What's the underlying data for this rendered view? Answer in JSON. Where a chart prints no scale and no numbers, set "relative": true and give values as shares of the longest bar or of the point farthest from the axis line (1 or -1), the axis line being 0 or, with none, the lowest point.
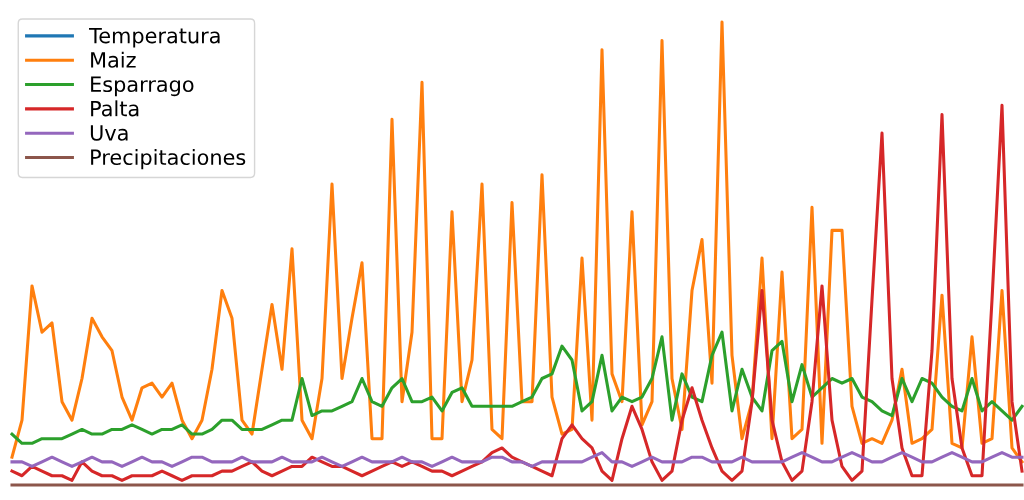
{
  "chart_data": {
    "type": "line",
    "relative": true,
    "legend": "top left",
    "grid": false,
    "categories": [
      null,
      null,
      null,
      null,
      null,
      null,
      null,
      null,
      null,
      null,
      null,
      null,
      null,
      null,
      null,
      null,
      null,
      null,
      null,
      null,
      null,
      null,
      null,
      null,
      null,
      null,
      null,
      null,
      null,
      null,
      null,
      null,
      null,
      null,
      null,
      null,
      null,
      null,
      null,
      null,
      null,
      null,
      null,
      null,
      null,
      null,
      null,
      null,
      null,
      null,
      null,
      null,
      null,
      null,
      null,
      null,
      null,
      null,
      null,
      null,
      null,
      null,
      null,
      null,
      null,
      null,
      null,
      null,
      null,
      null,
      null,
      null,
      null,
      null,
      null,
      null,
      null,
      null,
      null,
      null,
      null,
      null,
      null,
      null,
      null,
      null,
      null,
      null,
      null,
      null,
      null,
      null,
      null,
      null,
      null,
      null,
      null,
      null,
      null,
      null,
      null,
      null
    ],
    "series": [
      {
        "name": "Temperatura",
        "color": "#1f77b4",
        "values": [
          null,
          null,
          null,
          null,
          null,
          null,
          null,
          null,
          null,
          null,
          null,
          null,
          null,
          null,
          null,
          null,
          null,
          null,
          null,
          null,
          null,
          null,
          null,
          null,
          null,
          null,
          null,
          null,
          null,
          null,
          null,
          null,
          null,
          null,
          null,
          null,
          null,
          null,
          null,
          null,
          null,
          null,
          null,
          null,
          null,
          null,
          null,
          null,
          null,
          null,
          null,
          null,
          null,
          null,
          null,
          null,
          null,
          null,
          null,
          null,
          null,
          null,
          null,
          null,
          null,
          null,
          null,
          null,
          null,
          null,
          null,
          null,
          null,
          null,
          null,
          null,
          null,
          null,
          null,
          null,
          null,
          null,
          null,
          null,
          null,
          null,
          null,
          null,
          null,
          null,
          null,
          null,
          null,
          null,
          null,
          null,
          null,
          null,
          null,
          null,
          null,
          null
        ]
      },
      {
        "name": "Maiz",
        "color": "#ff7f0e",
        "values": [
          0.06,
          0.14,
          0.43,
          0.33,
          0.35,
          0.18,
          0.14,
          0.23,
          0.36,
          0.32,
          0.29,
          0.19,
          0.14,
          0.21,
          0.22,
          0.19,
          0.22,
          0.14,
          0.1,
          0.14,
          0.25,
          0.42,
          0.36,
          0.14,
          0.11,
          0.25,
          0.39,
          0.25,
          0.51,
          0.14,
          0.1,
          0.23,
          0.65,
          0.23,
          0.36,
          0.48,
          0.1,
          0.1,
          0.79,
          0.18,
          0.33,
          0.87,
          0.1,
          0.1,
          0.59,
          0.18,
          0.27,
          0.65,
          0.12,
          0.1,
          0.61,
          0.18,
          0.18,
          0.67,
          0.19,
          0.11,
          0.12,
          0.49,
          0.14,
          0.94,
          0.24,
          0.18,
          0.59,
          0.13,
          0.18,
          0.96,
          0.23,
          0.12,
          0.42,
          0.53,
          0.22,
          1.0,
          0.28,
          0.1,
          0.18,
          0.49,
          0.1,
          0.46,
          0.1,
          0.12,
          0.6,
          0.09,
          0.55,
          0.55,
          0.17,
          0.09,
          0.1,
          0.09,
          0.14,
          0.25,
          0.09,
          0.1,
          0.12,
          0.41,
          0.09,
          0.08,
          0.32,
          0.09,
          0.1,
          0.42,
          0.08,
          0.05
        ]
      },
      {
        "name": "Esparrago",
        "color": "#2ca02c",
        "values": [
          0.11,
          0.09,
          0.09,
          0.1,
          0.1,
          0.1,
          0.11,
          0.12,
          0.11,
          0.11,
          0.12,
          0.12,
          0.13,
          0.12,
          0.11,
          0.12,
          0.12,
          0.13,
          0.11,
          0.11,
          0.12,
          0.14,
          0.14,
          0.12,
          0.12,
          0.12,
          0.13,
          0.14,
          0.14,
          0.23,
          0.15,
          0.16,
          0.16,
          0.17,
          0.18,
          0.23,
          0.18,
          0.17,
          0.21,
          0.23,
          0.18,
          0.18,
          0.19,
          0.16,
          0.2,
          0.21,
          0.17,
          0.17,
          0.17,
          0.17,
          0.17,
          0.18,
          0.19,
          0.23,
          0.24,
          0.3,
          0.27,
          0.16,
          0.18,
          0.28,
          0.16,
          0.19,
          0.18,
          0.19,
          0.23,
          0.32,
          0.14,
          0.24,
          0.19,
          0.18,
          0.28,
          0.33,
          0.16,
          0.25,
          0.19,
          0.16,
          0.29,
          0.31,
          0.18,
          0.26,
          0.19,
          0.21,
          0.23,
          0.22,
          0.23,
          0.19,
          0.18,
          0.16,
          0.15,
          0.23,
          0.18,
          0.23,
          0.22,
          0.19,
          0.17,
          0.16,
          0.23,
          0.16,
          0.18,
          0.16,
          0.14,
          0.17
        ]
      },
      {
        "name": "Palta",
        "color": "#d62728",
        "values": [
          0.03,
          0.02,
          0.04,
          0.03,
          0.02,
          0.02,
          0.01,
          0.05,
          0.03,
          0.02,
          0.02,
          0.01,
          0.02,
          0.02,
          0.02,
          0.03,
          0.02,
          0.01,
          0.02,
          0.02,
          0.02,
          0.03,
          0.03,
          0.04,
          0.05,
          0.03,
          0.02,
          0.03,
          0.04,
          0.04,
          0.06,
          0.05,
          0.04,
          0.04,
          0.03,
          0.02,
          0.03,
          0.04,
          0.05,
          0.04,
          0.05,
          0.04,
          0.03,
          0.03,
          0.02,
          0.03,
          0.04,
          0.05,
          0.07,
          0.08,
          0.06,
          0.05,
          0.04,
          0.03,
          0.02,
          0.1,
          0.13,
          0.1,
          0.08,
          0.03,
          0.01,
          0.1,
          0.17,
          0.12,
          0.05,
          0.01,
          0.03,
          0.14,
          0.21,
          0.14,
          0.08,
          0.03,
          0.01,
          0.03,
          0.18,
          0.42,
          0.14,
          0.05,
          0.01,
          0.03,
          0.18,
          0.43,
          0.14,
          0.04,
          0.01,
          0.03,
          0.4,
          0.76,
          0.23,
          0.08,
          0.02,
          0.02,
          0.29,
          0.8,
          0.23,
          0.08,
          0.02,
          0.02,
          0.4,
          0.82,
          0.18,
          0.03
        ]
      },
      {
        "name": "Uva",
        "color": "#9467bd",
        "values": [
          0.05,
          0.05,
          0.04,
          0.05,
          0.06,
          0.05,
          0.04,
          0.05,
          0.06,
          0.05,
          0.05,
          0.04,
          0.05,
          0.06,
          0.05,
          0.05,
          0.04,
          0.05,
          0.06,
          0.06,
          0.05,
          0.05,
          0.05,
          0.06,
          0.05,
          0.05,
          0.05,
          0.06,
          0.05,
          0.05,
          0.05,
          0.06,
          0.05,
          0.04,
          0.05,
          0.06,
          0.05,
          0.05,
          0.05,
          0.06,
          0.05,
          0.05,
          0.04,
          0.05,
          0.06,
          0.05,
          0.05,
          0.05,
          0.06,
          0.06,
          0.05,
          0.05,
          0.04,
          0.05,
          0.05,
          0.05,
          0.05,
          0.05,
          0.06,
          0.07,
          0.05,
          0.05,
          0.04,
          0.05,
          0.06,
          0.05,
          0.05,
          0.05,
          0.06,
          0.06,
          0.05,
          0.05,
          0.05,
          0.06,
          0.05,
          0.05,
          0.05,
          0.05,
          0.06,
          0.07,
          0.06,
          0.05,
          0.05,
          0.06,
          0.07,
          0.06,
          0.05,
          0.05,
          0.06,
          0.07,
          0.06,
          0.05,
          0.05,
          0.06,
          0.07,
          0.06,
          0.05,
          0.05,
          0.06,
          0.07,
          0.06,
          0.06
        ]
      },
      {
        "name": "Precipitaciones",
        "color": "#8c564b",
        "values": [
          0,
          0,
          0,
          0,
          0,
          0,
          0,
          0,
          0,
          0,
          0,
          0,
          0,
          0,
          0,
          0,
          0,
          0,
          0,
          0,
          0,
          0,
          0,
          0,
          0,
          0,
          0,
          0,
          0,
          0,
          0,
          0,
          0,
          0,
          0,
          0,
          0,
          0,
          0,
          0,
          0,
          0,
          0,
          0,
          0,
          0,
          0,
          0,
          0,
          0,
          0,
          0,
          0,
          0,
          0,
          0,
          0,
          0,
          0,
          0,
          0,
          0,
          0,
          0,
          0,
          0,
          0,
          0,
          0,
          0,
          0,
          0,
          0,
          0,
          0,
          0,
          0,
          0,
          0,
          0,
          0,
          0,
          0,
          0,
          0,
          0,
          0,
          0,
          0,
          0,
          0,
          0,
          0,
          0,
          0,
          0,
          0,
          0,
          0,
          0,
          0,
          0
        ]
      }
    ]
  }
}
